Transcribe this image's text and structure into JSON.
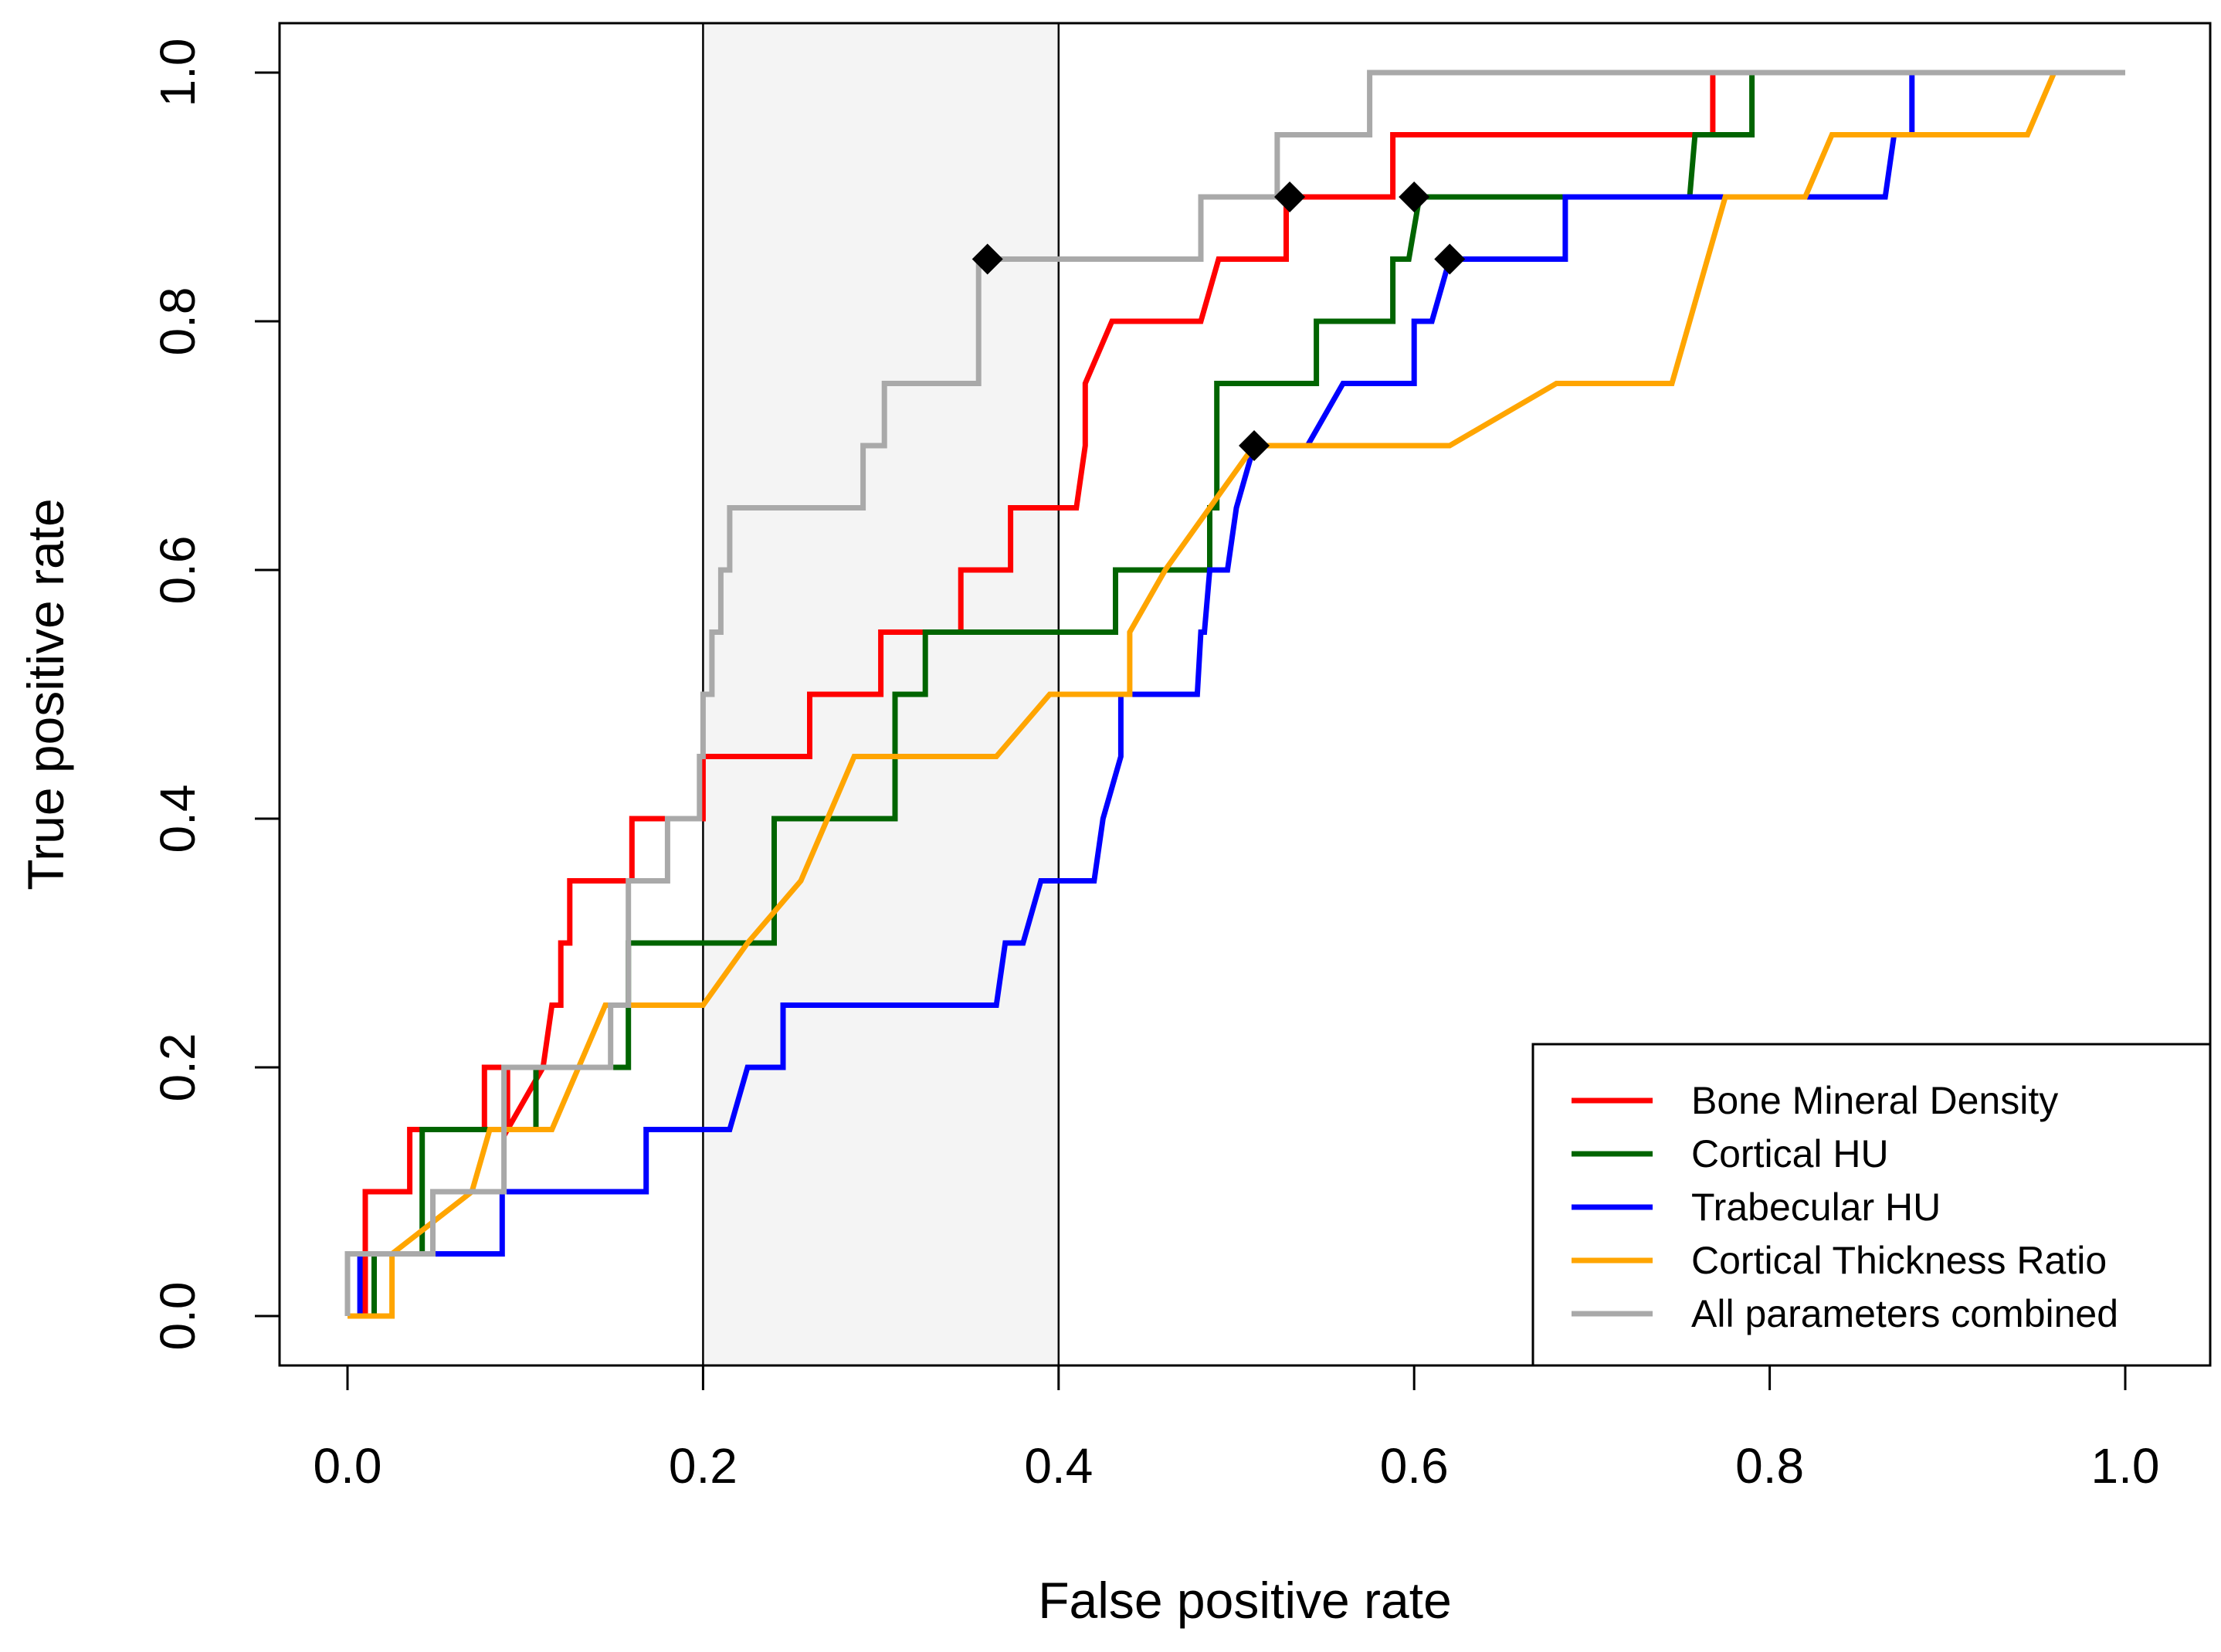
{
  "chart_data": {
    "type": "line",
    "title": "",
    "xlabel": "False positive rate",
    "ylabel": "True positive rate",
    "xlim": [
      0,
      1
    ],
    "ylim": [
      0,
      1
    ],
    "xticks": [
      0,
      0.2,
      0.4,
      0.6,
      0.8,
      1
    ],
    "xtick_labels": [
      "0.0",
      "0.2",
      "0.4",
      "0.6",
      "0.8",
      "1.0"
    ],
    "yticks": [
      0,
      0.2,
      0.4,
      0.6,
      0.8,
      1
    ],
    "ytick_labels": [
      "0.0",
      "0.2",
      "0.4",
      "0.6",
      "0.8",
      "1.0"
    ],
    "grid": false,
    "shaded_region": {
      "x_from": 0.2,
      "x_to": 0.4,
      "color": "#f4f4f4"
    },
    "reference_lines_x": [
      0.2,
      0.4
    ],
    "legend_position": "bottom-right",
    "series": [
      {
        "name": "Bone Mineral Density",
        "color": "#ff0000",
        "x": [
          0,
          0.01,
          0.01,
          0.035,
          0.035,
          0.077,
          0.077,
          0.09,
          0.09,
          0.11,
          0.115,
          0.12,
          0.12,
          0.125,
          0.125,
          0.128,
          0.128,
          0.16,
          0.16,
          0.2,
          0.2,
          0.21,
          0.21,
          0.26,
          0.26,
          0.3,
          0.3,
          0.345,
          0.345,
          0.373,
          0.373,
          0.41,
          0.415,
          0.415,
          0.43,
          0.44,
          0.48,
          0.49,
          0.49,
          0.528,
          0.528,
          0.588,
          0.588,
          0.76,
          0.76,
          0.768,
          0.768
        ],
        "y": [
          0,
          0,
          0.1,
          0.1,
          0.15,
          0.15,
          0.2,
          0.2,
          0.15,
          0.2,
          0.25,
          0.25,
          0.3,
          0.3,
          0.35,
          0.35,
          0.35,
          0.35,
          0.4,
          0.4,
          0.45,
          0.45,
          0.45,
          0.45,
          0.5,
          0.5,
          0.55,
          0.55,
          0.6,
          0.6,
          0.65,
          0.65,
          0.7,
          0.75,
          0.8,
          0.8,
          0.8,
          0.85,
          0.85,
          0.85,
          0.9,
          0.9,
          0.95,
          0.95,
          0.95,
          0.95,
          1
        ]
      },
      {
        "name": "Cortical HU",
        "color": "#006400",
        "x": [
          0,
          0.015,
          0.015,
          0.042,
          0.042,
          0.106,
          0.106,
          0.158,
          0.158,
          0.24,
          0.24,
          0.308,
          0.308,
          0.325,
          0.325,
          0.432,
          0.432,
          0.485,
          0.485,
          0.489,
          0.489,
          0.545,
          0.545,
          0.588,
          0.588,
          0.597,
          0.603,
          0.603,
          0.755,
          0.758,
          0.758,
          0.79,
          0.79
        ],
        "y": [
          0,
          0,
          0.05,
          0.05,
          0.15,
          0.15,
          0.2,
          0.2,
          0.3,
          0.3,
          0.4,
          0.4,
          0.5,
          0.5,
          0.55,
          0.55,
          0.6,
          0.6,
          0.65,
          0.65,
          0.75,
          0.75,
          0.8,
          0.8,
          0.85,
          0.85,
          0.9,
          0.9,
          0.9,
          0.95,
          0.95,
          0.95,
          1
        ]
      },
      {
        "name": "Trabecular HU",
        "color": "#0000ff",
        "x": [
          0,
          0.007,
          0.007,
          0.048,
          0.048,
          0.087,
          0.087,
          0.168,
          0.168,
          0.215,
          0.225,
          0.236,
          0.236,
          0.245,
          0.245,
          0.365,
          0.37,
          0.37,
          0.38,
          0.39,
          0.39,
          0.42,
          0.425,
          0.435,
          0.435,
          0.478,
          0.478,
          0.48,
          0.482,
          0.485,
          0.485,
          0.495,
          0.5,
          0.5,
          0.51,
          0.515,
          0.54,
          0.56,
          0.56,
          0.6,
          0.6,
          0.61,
          0.61,
          0.62,
          0.62,
          0.627,
          0.627,
          0.685,
          0.685,
          0.865,
          0.87,
          0.87,
          0.88,
          0.88
        ],
        "y": [
          0,
          0,
          0.05,
          0.05,
          0.05,
          0.05,
          0.1,
          0.1,
          0.15,
          0.15,
          0.2,
          0.2,
          0.2,
          0.2,
          0.25,
          0.25,
          0.3,
          0.3,
          0.3,
          0.35,
          0.35,
          0.35,
          0.4,
          0.45,
          0.5,
          0.5,
          0.5,
          0.55,
          0.55,
          0.6,
          0.6,
          0.6,
          0.65,
          0.65,
          0.7,
          0.7,
          0.7,
          0.75,
          0.75,
          0.75,
          0.8,
          0.8,
          0.8,
          0.85,
          0.85,
          0.85,
          0.85,
          0.85,
          0.9,
          0.9,
          0.95,
          0.95,
          0.95,
          1
        ]
      },
      {
        "name": "Cortical Thickness Ratio",
        "color": "#ffa500",
        "x": [
          0,
          0.025,
          0.025,
          0.07,
          0.08,
          0.1,
          0.115,
          0.145,
          0.16,
          0.2,
          0.225,
          0.255,
          0.285,
          0.29,
          0.365,
          0.395,
          0.43,
          0.44,
          0.44,
          0.46,
          0.51,
          0.515,
          0.62,
          0.68,
          0.745,
          0.765,
          0.775,
          0.82,
          0.835,
          0.945,
          0.96
        ],
        "y": [
          0,
          0,
          0.05,
          0.1,
          0.15,
          0.15,
          0.15,
          0.25,
          0.25,
          0.25,
          0.3,
          0.35,
          0.45,
          0.45,
          0.45,
          0.5,
          0.5,
          0.5,
          0.55,
          0.6,
          0.7,
          0.7,
          0.7,
          0.75,
          0.75,
          0.85,
          0.9,
          0.9,
          0.95,
          0.95,
          1
        ]
      },
      {
        "name": "All parameters combined",
        "color": "#a9a9a9",
        "x": [
          0,
          0,
          0.048,
          0.048,
          0.088,
          0.088,
          0.148,
          0.148,
          0.158,
          0.158,
          0.18,
          0.18,
          0.198,
          0.198,
          0.2,
          0.2,
          0.205,
          0.205,
          0.21,
          0.21,
          0.215,
          0.215,
          0.22,
          0.22,
          0.29,
          0.29,
          0.302,
          0.302,
          0.355,
          0.355,
          0.365,
          0.48,
          0.48,
          0.523,
          0.523,
          0.575,
          0.575,
          1
        ],
        "y": [
          0,
          0.05,
          0.05,
          0.1,
          0.1,
          0.2,
          0.2,
          0.25,
          0.25,
          0.35,
          0.35,
          0.4,
          0.4,
          0.45,
          0.45,
          0.5,
          0.5,
          0.55,
          0.55,
          0.6,
          0.6,
          0.65,
          0.65,
          0.65,
          0.65,
          0.7,
          0.7,
          0.75,
          0.75,
          0.85,
          0.85,
          0.85,
          0.9,
          0.9,
          0.95,
          0.95,
          1,
          1
        ]
      }
    ],
    "markers": [
      {
        "series": "All parameters combined",
        "x": 0.36,
        "y": 0.85,
        "shape": "diamond"
      },
      {
        "series": "Bone Mineral Density",
        "x": 0.53,
        "y": 0.9,
        "shape": "diamond"
      },
      {
        "series": "Cortical HU",
        "x": 0.6,
        "y": 0.9,
        "shape": "diamond"
      },
      {
        "series": "Trabecular HU",
        "x": 0.62,
        "y": 0.85,
        "shape": "diamond"
      },
      {
        "series": "Cortical Thickness Ratio",
        "x": 0.51,
        "y": 0.7,
        "shape": "diamond"
      }
    ]
  }
}
